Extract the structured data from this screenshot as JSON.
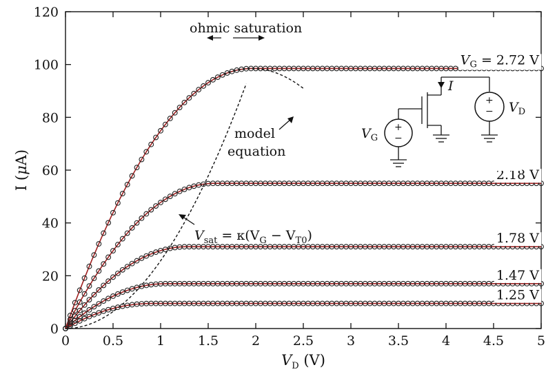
{
  "chart_data": {
    "type": "line",
    "title": "",
    "xlabel": {
      "main": "V",
      "sub": "D",
      "unit": " (V)"
    },
    "ylabel": {
      "pre": "I (",
      "mu": "μ",
      "post": "A)"
    },
    "xlim": [
      0,
      5
    ],
    "ylim": [
      0,
      120
    ],
    "xticks": [
      0,
      0.5,
      1,
      1.5,
      2,
      2.5,
      3,
      3.5,
      4,
      4.5,
      5
    ],
    "xtick_labels": [
      "0",
      "0.5",
      "1",
      "1.5",
      "2",
      "2.5",
      "3",
      "3.5",
      "4",
      "4.5",
      "5"
    ],
    "yticks": [
      0,
      20,
      40,
      60,
      80,
      100,
      120
    ],
    "ytick_labels": [
      "0",
      "20",
      "40",
      "60",
      "80",
      "100",
      "120"
    ],
    "grid": false,
    "kappa": 0.72,
    "vt0": 0.0,
    "series": [
      {
        "label_main": "V",
        "label_sub": "G",
        "label_rest": " = 2.72 V",
        "vg": 2.72,
        "isat": 98.5
      },
      {
        "label_main": "",
        "label_sub": "",
        "label_rest": "2.18 V",
        "vg": 2.18,
        "isat": 55.0
      },
      {
        "label_main": "",
        "label_sub": "",
        "label_rest": "1.78 V",
        "vg": 1.78,
        "isat": 31.0
      },
      {
        "label_main": "",
        "label_sub": "",
        "label_rest": "1.47 V",
        "vg": 1.47,
        "isat": 17.0
      },
      {
        "label_main": "",
        "label_sub": "",
        "label_rest": "1.25 V",
        "vg": 1.25,
        "isat": 9.5
      }
    ],
    "annotations": {
      "region_text": "ohmic saturation",
      "model_line1": "model",
      "model_line2": "equation",
      "vsat": {
        "v": "V",
        "sub_sat": "sat",
        "eq": " = κ(V",
        "sub_g": "G",
        "minus": " − V",
        "sub_t0": "T0",
        "close": ")"
      }
    },
    "inset": {
      "current": "I",
      "plus": "+",
      "minus": "−",
      "vg": "V",
      "vg_sub": "G",
      "vd": "V",
      "vd_sub": "D"
    }
  }
}
